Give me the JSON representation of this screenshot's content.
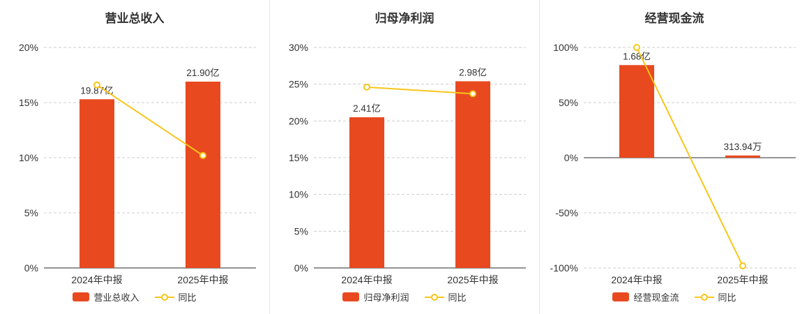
{
  "colors": {
    "bar": "#e8491f",
    "line": "#f9c51b",
    "grid": "#cccccc",
    "axis": "#555555",
    "text": "#333333"
  },
  "chart_data": [
    {
      "type": "bar",
      "title": "营业总收入",
      "categories": [
        "2024年中报",
        "2025年中报"
      ],
      "bar_series": {
        "name": "营业总收入",
        "labels": [
          "19.87亿",
          "21.90亿"
        ],
        "display_pct": [
          15.3,
          16.9
        ]
      },
      "line_series": {
        "name": "同比",
        "values": [
          16.6,
          10.2
        ]
      },
      "ylim": [
        0,
        20
      ],
      "yticks": [
        0,
        5,
        10,
        15,
        20
      ],
      "ytick_suffix": "%",
      "grid": "dashed",
      "legend_position": "bottom"
    },
    {
      "type": "bar",
      "title": "归母净利润",
      "categories": [
        "2024年中报",
        "2025年中报"
      ],
      "bar_series": {
        "name": "归母净利润",
        "labels": [
          "2.41亿",
          "2.98亿"
        ],
        "display_pct": [
          20.5,
          25.4
        ]
      },
      "line_series": {
        "name": "同比",
        "values": [
          24.6,
          23.7
        ]
      },
      "ylim": [
        0,
        30
      ],
      "yticks": [
        0,
        5,
        10,
        15,
        20,
        25,
        30
      ],
      "ytick_suffix": "%",
      "grid": "dashed",
      "legend_position": "bottom"
    },
    {
      "type": "bar",
      "title": "经营现金流",
      "categories": [
        "2024年中报",
        "2025年中报"
      ],
      "bar_series": {
        "name": "经营现金流",
        "labels": [
          "1.68亿",
          "313.94万"
        ],
        "display_pct": [
          84,
          2
        ]
      },
      "line_series": {
        "name": "同比",
        "values": [
          100,
          -98.1
        ]
      },
      "ylim": [
        -100,
        100
      ],
      "yticks": [
        -100,
        -50,
        0,
        50,
        100
      ],
      "ytick_suffix": "%",
      "grid": "dashed",
      "legend_position": "bottom"
    }
  ]
}
